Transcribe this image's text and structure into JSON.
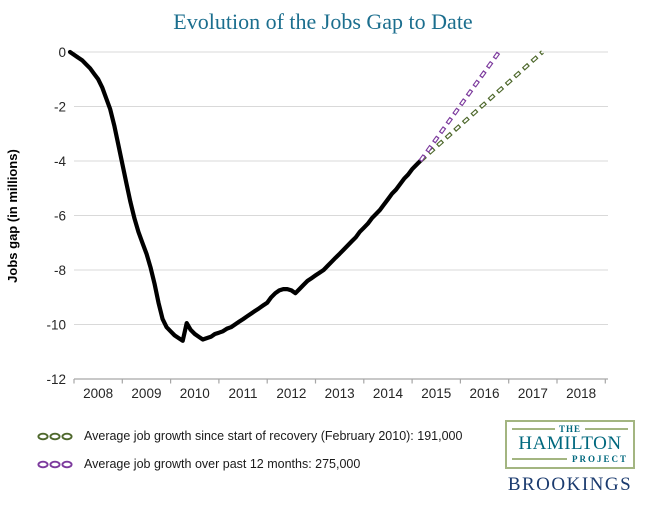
{
  "chart_data": {
    "type": "line",
    "title": "Evolution of the Jobs Gap to Date",
    "xlabel": "",
    "ylabel": "Jobs gap (in millions)",
    "x_ticks": [
      "2008",
      "2009",
      "2010",
      "2011",
      "2012",
      "2013",
      "2014",
      "2015",
      "2016",
      "2017",
      "2018"
    ],
    "y_ticks": [
      0,
      -2,
      -4,
      -6,
      -8,
      -10,
      -12
    ],
    "xlim": [
      2008,
      2019
    ],
    "ylim": [
      -12,
      0
    ],
    "grid": "horizontal-light-gray",
    "legend_position": "bottom-left",
    "series": [
      {
        "name": "Jobs gap",
        "style": "solid",
        "color": "#000000",
        "width": 4.2,
        "x_start": 2007.9167,
        "x_step": "monthly",
        "y": [
          0.0,
          -0.1,
          -0.2,
          -0.3,
          -0.45,
          -0.6,
          -0.8,
          -1.0,
          -1.3,
          -1.7,
          -2.1,
          -2.7,
          -3.4,
          -4.1,
          -4.8,
          -5.5,
          -6.1,
          -6.6,
          -7.0,
          -7.4,
          -7.9,
          -8.5,
          -9.2,
          -9.8,
          -10.1,
          -10.25,
          -10.4,
          -10.5,
          -10.6,
          -9.95,
          -10.2,
          -10.35,
          -10.45,
          -10.55,
          -10.5,
          -10.45,
          -10.35,
          -10.3,
          -10.25,
          -10.15,
          -10.1,
          -10.0,
          -9.9,
          -9.8,
          -9.7,
          -9.6,
          -9.5,
          -9.4,
          -9.3,
          -9.2,
          -9.0,
          -8.85,
          -8.75,
          -8.7,
          -8.7,
          -8.75,
          -8.85,
          -8.7,
          -8.55,
          -8.4,
          -8.3,
          -8.2,
          -8.1,
          -8.0,
          -7.85,
          -7.7,
          -7.55,
          -7.4,
          -7.25,
          -7.1,
          -6.95,
          -6.8,
          -6.6,
          -6.45,
          -6.3,
          -6.1,
          -5.95,
          -5.8,
          -5.6,
          -5.4,
          -5.2,
          -5.05,
          -4.85,
          -4.65,
          -4.5,
          -4.3,
          -4.15,
          -4.0
        ]
      },
      {
        "name": "Average job growth since start of recovery (February 2010): 191,000",
        "style": "dashed",
        "color": "#4e682c",
        "width": 4.2,
        "x": [
          2015.17,
          2017.7
        ],
        "y": [
          -4.0,
          0.0
        ]
      },
      {
        "name": "Average job growth over past 12 months: 275,000",
        "style": "dashed",
        "color": "#7c3a9d",
        "width": 4.2,
        "x": [
          2015.17,
          2016.8
        ],
        "y": [
          -4.0,
          0.0
        ]
      }
    ]
  },
  "legend": {
    "items": [
      {
        "label": "Average job growth since start of recovery (February 2010): 191,000",
        "color": "#4e682c"
      },
      {
        "label": "Average job growth over past 12 months: 275,000",
        "color": "#7c3a9d"
      }
    ]
  },
  "branding": {
    "the": "THE",
    "hamilton": "HAMILTON",
    "project": "PROJECT",
    "brookings": "BROOKINGS"
  },
  "colors": {
    "title": "#1b6e8e",
    "gridline": "#d9d9d9",
    "axis": "#a6a6a6",
    "logo_teal": "#00687e",
    "logo_sage": "#a3b581",
    "brookings_navy": "#1a3a6e"
  }
}
